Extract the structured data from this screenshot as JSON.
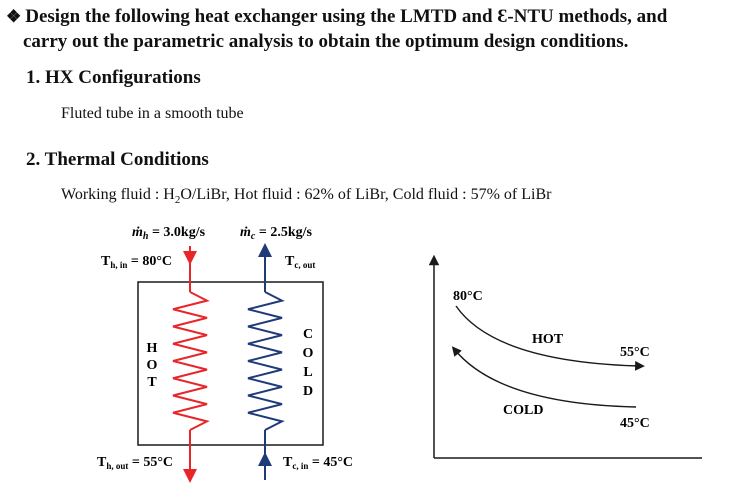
{
  "heading": {
    "bullet": "❖",
    "line1": "Design the following heat exchanger using the LMTD and Ɛ-NTU methods, and",
    "line2": "carry out the parametric analysis to obtain the optimum design conditions."
  },
  "section1": {
    "title": "1. HX Configurations",
    "text": "Fluted tube in a smooth tube"
  },
  "section2": {
    "title": "2. Thermal Conditions",
    "fluid_prefix": "Working fluid : H",
    "fluid_sub": "2",
    "fluid_suffix": "O/LiBr, Hot fluid : 62% of LiBr, Cold fluid : 57% of LiBr"
  },
  "hx_diagram": {
    "mass_flow_hot": {
      "symbol": "ṁ",
      "sub": "h",
      "value": " = 3.0kg/s"
    },
    "mass_flow_cold": {
      "symbol": "ṁ",
      "sub": "c",
      "value": " = 2.5kg/s"
    },
    "t_hot_in": {
      "symbol": "T",
      "sub": "h, in",
      "value": " = 80°C"
    },
    "t_cold_out": {
      "symbol": "T",
      "sub": "c, out"
    },
    "t_hot_out": {
      "symbol": "T",
      "sub": "h, out",
      "value": " = 55°C"
    },
    "t_cold_in": {
      "symbol": "T",
      "sub": "c, in",
      "value": " = 45°C"
    },
    "hot_letters": [
      "H",
      "O",
      "T"
    ],
    "cold_letters": [
      "C",
      "O",
      "L",
      "D"
    ],
    "colors": {
      "hot": "#e8262a",
      "cold": "#1f3a78",
      "outline": "#1a1a1a"
    }
  },
  "temp_profile": {
    "hot_in_label": "80°C",
    "hot_label": "HOT",
    "hot_out_label": "55°C",
    "cold_label": "COLD",
    "cold_in_label": "45°C"
  }
}
